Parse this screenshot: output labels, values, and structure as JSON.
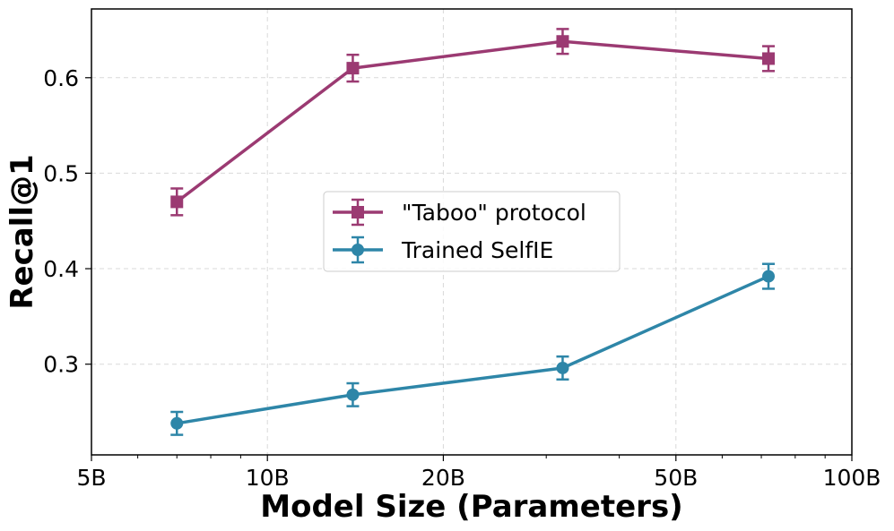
{
  "chart_data": {
    "type": "line",
    "xscale": "log",
    "xlim": [
      5,
      100
    ],
    "ylim": [
      0.205,
      0.672
    ],
    "xlabel": "Model Size (Parameters)",
    "ylabel": "Recall@1",
    "xticks": [
      {
        "value": 5,
        "label": "5B"
      },
      {
        "value": 10,
        "label": "10B"
      },
      {
        "value": 20,
        "label": "20B"
      },
      {
        "value": 50,
        "label": "50B"
      },
      {
        "value": 100,
        "label": "100B"
      }
    ],
    "yticks": [
      {
        "value": 0.3,
        "label": "0.3"
      },
      {
        "value": 0.4,
        "label": "0.4"
      },
      {
        "value": 0.5,
        "label": "0.5"
      },
      {
        "value": 0.6,
        "label": "0.6"
      }
    ],
    "grid": true,
    "legend_position": "center",
    "series": [
      {
        "name": "\"Taboo\" protocol",
        "color": "#9b3a72",
        "marker": "square",
        "x": [
          7,
          14,
          32,
          72
        ],
        "y": [
          0.47,
          0.61,
          0.638,
          0.62
        ],
        "err": [
          0.014,
          0.014,
          0.013,
          0.013
        ]
      },
      {
        "name": "Trained SelfIE",
        "color": "#2e86a8",
        "marker": "circle",
        "x": [
          7,
          14,
          32,
          72
        ],
        "y": [
          0.238,
          0.268,
          0.296,
          0.392
        ],
        "err": [
          0.012,
          0.012,
          0.012,
          0.013
        ]
      }
    ]
  }
}
